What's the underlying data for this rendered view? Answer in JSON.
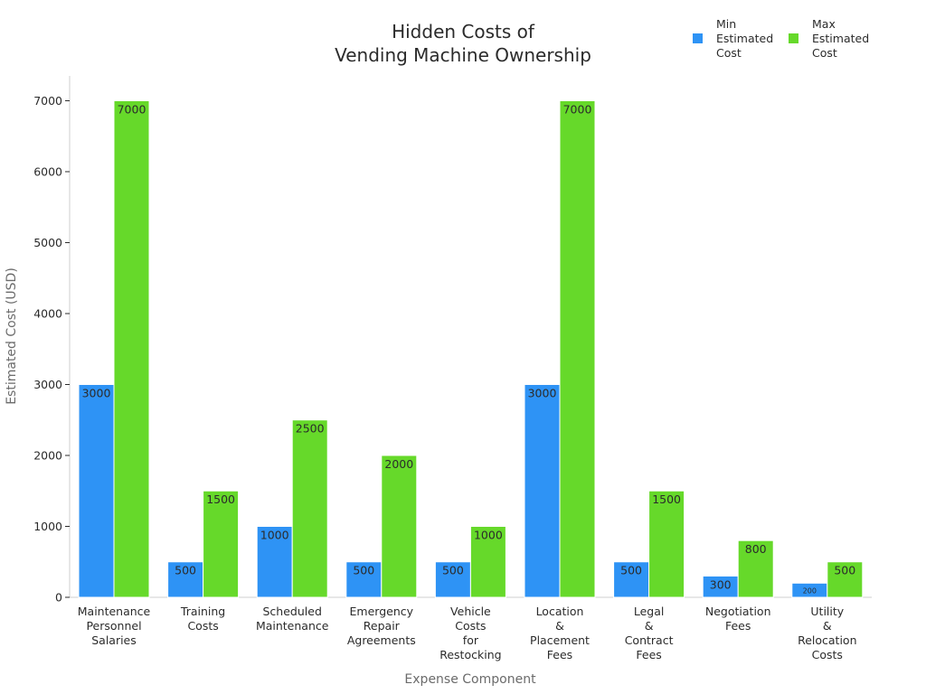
{
  "chart_data": {
    "type": "bar",
    "title": [
      "Hidden Costs of",
      "Vending Machine Ownership"
    ],
    "xlabel": "Expense Component",
    "ylabel": "Estimated Cost (USD)",
    "ylim": [
      0,
      7350
    ],
    "yticks": [
      0,
      1000,
      2000,
      3000,
      4000,
      5000,
      6000,
      7000
    ],
    "grid": false,
    "legend_position": "top-right",
    "categories": [
      [
        "Maintenance",
        "Personnel",
        "Salaries"
      ],
      [
        "Training",
        "Costs"
      ],
      [
        "Scheduled",
        "Maintenance"
      ],
      [
        "Emergency",
        "Repair",
        "Agreements"
      ],
      [
        "Vehicle",
        "Costs",
        "for",
        "Restocking"
      ],
      [
        "Location",
        "&",
        "Placement",
        "Fees"
      ],
      [
        "Legal",
        "&",
        "Contract",
        "Fees"
      ],
      [
        "Negotiation",
        "Fees"
      ],
      [
        "Utility",
        "&",
        "Relocation",
        "Costs"
      ]
    ],
    "series": [
      {
        "name": [
          "Min",
          "Estimated",
          "Cost"
        ],
        "color": "#2e93f5",
        "values": [
          3000,
          500,
          1000,
          500,
          500,
          3000,
          500,
          300,
          200
        ]
      },
      {
        "name": [
          "Max",
          "Estimated",
          "Cost"
        ],
        "color": "#66d92a",
        "values": [
          7000,
          1500,
          2500,
          2000,
          1000,
          7000,
          1500,
          800,
          500
        ]
      }
    ]
  }
}
